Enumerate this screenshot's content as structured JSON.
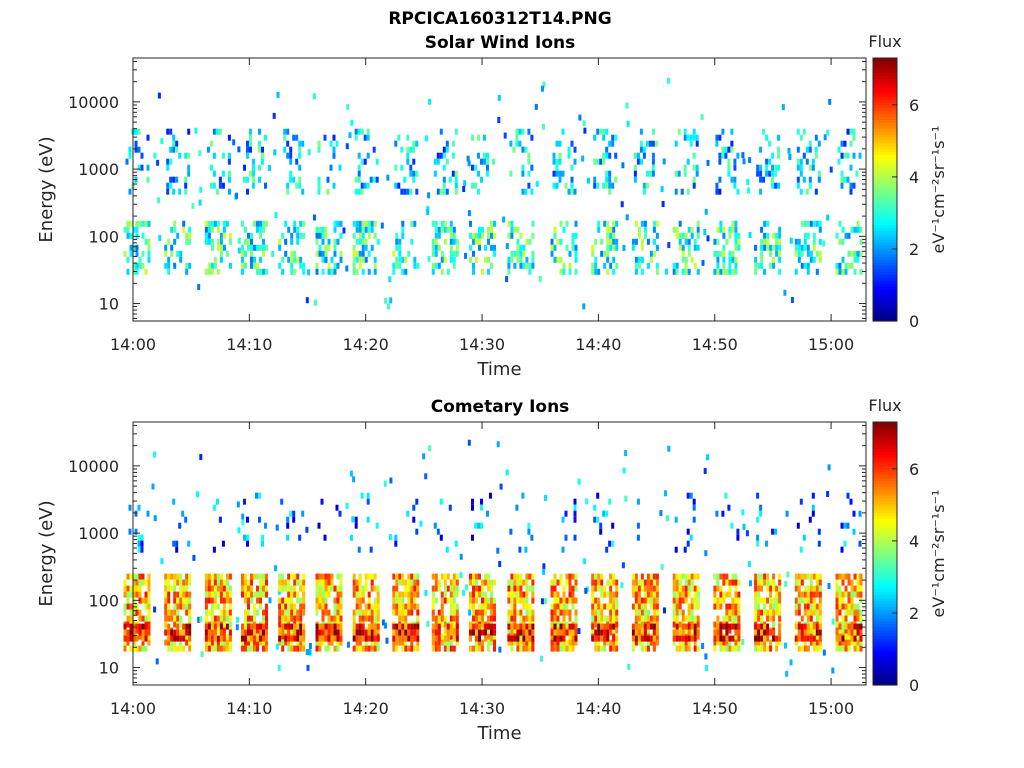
{
  "figure_title": "RPCICA160312T14.PNG",
  "colormap": [
    "#00007f",
    "#0000ff",
    "#007fff",
    "#00ffff",
    "#7fff7f",
    "#ffff00",
    "#ff7f00",
    "#ff0000",
    "#7f0000"
  ],
  "chart_data": [
    {
      "type": "heatmap",
      "title": "Solar Wind Ions",
      "xlabel": "Time",
      "ylabel": "Energy (eV)",
      "x_ticks": [
        "14:00",
        "14:10",
        "14:20",
        "14:30",
        "14:40",
        "14:50",
        "15:00"
      ],
      "x_range": [
        "14:00",
        "15:03"
      ],
      "y_scale": "log",
      "y_range": [
        5.5,
        45000
      ],
      "y_ticks": [
        10,
        100,
        1000,
        10000
      ],
      "colorbar": {
        "title": "Flux",
        "label": "eV⁻¹cm⁻²sr⁻¹s⁻¹",
        "ticks": [
          0,
          2,
          4,
          6
        ],
        "range": [
          0,
          7.3
        ]
      },
      "bursts_minutes": [
        0.3,
        3.8,
        7.3,
        10.4,
        13.6,
        16.8,
        20.0,
        23.4,
        26.8,
        30.0,
        33.3,
        37.0,
        40.5,
        44.0,
        47.5,
        51.0,
        54.5,
        58.0,
        61.5
      ],
      "bands": [
        {
          "name": "low energy",
          "energy_range_eV": [
            30,
            170
          ],
          "typical_flux": 3.0
        },
        {
          "name": "high energy",
          "energy_range_eV": [
            500,
            4000
          ],
          "typical_flux": 2.4
        }
      ]
    },
    {
      "type": "heatmap",
      "title": "Cometary Ions",
      "xlabel": "Time",
      "ylabel": "Energy (eV)",
      "x_ticks": [
        "14:00",
        "14:10",
        "14:20",
        "14:30",
        "14:40",
        "14:50",
        "15:00"
      ],
      "x_range": [
        "14:00",
        "15:03"
      ],
      "y_scale": "log",
      "y_range": [
        5.5,
        45000
      ],
      "y_ticks": [
        10,
        100,
        1000,
        10000
      ],
      "colorbar": {
        "title": "Flux",
        "label": "eV⁻¹cm⁻²sr⁻¹s⁻¹",
        "ticks": [
          0,
          2,
          4,
          6
        ],
        "range": [
          0,
          7.3
        ]
      },
      "bursts_minutes": [
        0.3,
        3.8,
        7.3,
        10.4,
        13.6,
        16.8,
        20.0,
        23.4,
        26.8,
        30.0,
        33.3,
        37.0,
        40.5,
        44.0,
        47.5,
        51.0,
        54.5,
        58.0,
        61.5
      ],
      "bands": [
        {
          "name": "main",
          "energy_range_eV": [
            18,
            250
          ],
          "typical_flux": 5.0
        },
        {
          "name": "peak",
          "energy_range_eV": [
            25,
            45
          ],
          "typical_flux": 6.2
        },
        {
          "name": "high energy",
          "energy_range_eV": [
            600,
            4000
          ],
          "typical_flux": 1.8
        }
      ]
    }
  ]
}
